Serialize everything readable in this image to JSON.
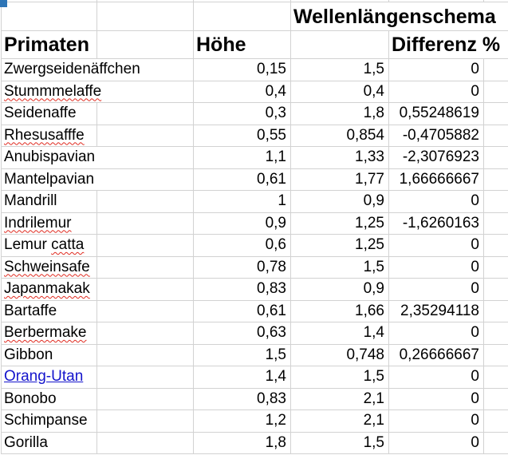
{
  "sheet": {
    "headers": {
      "group": "Wellenlängenschema",
      "col_primates": "Primaten",
      "col_hoehe": "Höhe",
      "col_diff": "Differenz %"
    },
    "rows": [
      {
        "name": "Zwergseidenäffchen",
        "hoehe": "0,15",
        "value": "1,5",
        "differenz": "0",
        "squiggle": "none",
        "link": false
      },
      {
        "name": "Stummmelaffe",
        "hoehe": "0,4",
        "value": "0,4",
        "differenz": "0",
        "squiggle": "full",
        "link": false
      },
      {
        "name": "Seidenaffe",
        "hoehe": "0,3",
        "value": "1,8",
        "differenz": "0,55248619",
        "squiggle": "none",
        "link": false
      },
      {
        "name": "Rhesusafffe",
        "hoehe": "0,55",
        "value": "0,854",
        "differenz": "-0,4705882",
        "squiggle": "full",
        "link": false
      },
      {
        "name": "Anubispavian",
        "hoehe": "1,1",
        "value": "1,33",
        "differenz": "-2,3076923",
        "squiggle": "none",
        "link": false
      },
      {
        "name": "Mantelpavian",
        "hoehe": "0,61",
        "value": "1,77",
        "differenz": "1,66666667",
        "squiggle": "none",
        "link": false
      },
      {
        "name": "Mandrill",
        "hoehe": "1",
        "value": "0,9",
        "differenz": "0",
        "squiggle": "none",
        "link": false
      },
      {
        "name": "Indrilemur",
        "hoehe": "0,9",
        "value": "1,25",
        "differenz": "-1,6260163",
        "squiggle": "full",
        "link": false
      },
      {
        "name": "Lemur catta",
        "hoehe": "0,6",
        "value": "1,25",
        "differenz": "0",
        "squiggle": "partial",
        "squiggle_text": "catta",
        "link": false
      },
      {
        "name": "Schweinsafe",
        "hoehe": "0,78",
        "value": "1,5",
        "differenz": "0",
        "squiggle": "full",
        "link": false
      },
      {
        "name": "Japanmakak",
        "hoehe": "0,83",
        "value": "0,9",
        "differenz": "0",
        "squiggle": "full",
        "link": false
      },
      {
        "name": "Bartaffe",
        "hoehe": "0,61",
        "value": "1,66",
        "differenz": "2,35294118",
        "squiggle": "none",
        "link": false
      },
      {
        "name": "Berbermake",
        "hoehe": "0,63",
        "value": "1,4",
        "differenz": "0",
        "squiggle": "full",
        "link": false
      },
      {
        "name": "Gibbon",
        "hoehe": "1,5",
        "value": "0,748",
        "differenz": "0,26666667",
        "squiggle": "none",
        "link": false
      },
      {
        "name": "Orang-Utan",
        "hoehe": "1,4",
        "value": "1,5",
        "differenz": "0",
        "squiggle": "none",
        "link": true
      },
      {
        "name": "Bonobo",
        "hoehe": "0,83",
        "value": "2,1",
        "differenz": "0",
        "squiggle": "none",
        "link": false
      },
      {
        "name": "Schimpanse",
        "hoehe": "1,2",
        "value": "2,1",
        "differenz": "0",
        "squiggle": "none",
        "link": false
      },
      {
        "name": "Gorilla",
        "hoehe": "1,8",
        "value": "1,5",
        "differenz": "0",
        "squiggle": "none",
        "link": false
      }
    ]
  },
  "colors": {
    "gridline": "#d2d2d2",
    "text": "#000000",
    "hyperlink": "#1414cc",
    "squiggle_red": "#e02b20",
    "selection_corner_blue": "#2e75b6",
    "background": "#ffffff"
  }
}
